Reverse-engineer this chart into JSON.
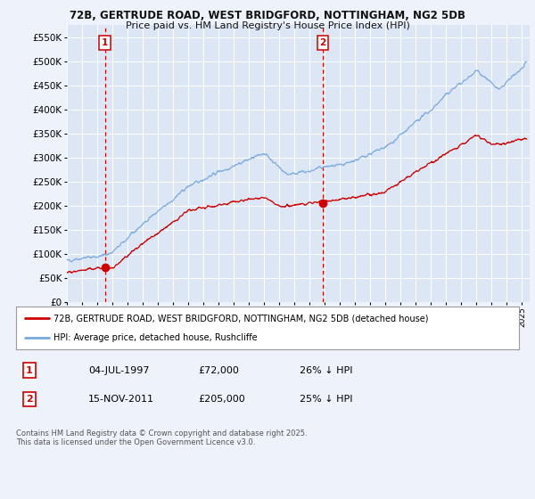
{
  "title_line1": "72B, GERTRUDE ROAD, WEST BRIDGFORD, NOTTINGHAM, NG2 5DB",
  "title_line2": "Price paid vs. HM Land Registry's House Price Index (HPI)",
  "background_color": "#eef2fa",
  "plot_background": "#dde6f5",
  "grid_color": "#ffffff",
  "ylim": [
    0,
    575000
  ],
  "yticks": [
    0,
    50000,
    100000,
    150000,
    200000,
    250000,
    300000,
    350000,
    400000,
    450000,
    500000,
    550000
  ],
  "ytick_labels": [
    "£0",
    "£50K",
    "£100K",
    "£150K",
    "£200K",
    "£250K",
    "£300K",
    "£350K",
    "£400K",
    "£450K",
    "£500K",
    "£550K"
  ],
  "xlim_start": 1995.0,
  "xlim_end": 2025.5,
  "sale1_date": 1997.5,
  "sale1_price": 72000,
  "sale1_label": "1",
  "sale2_date": 2011.88,
  "sale2_price": 205000,
  "sale2_label": "2",
  "red_line_color": "#cc0000",
  "blue_line_color": "#7aaadd",
  "marker_color": "#cc0000",
  "dashed_line_color": "#cc0000",
  "legend_label_red": "72B, GERTRUDE ROAD, WEST BRIDGFORD, NOTTINGHAM, NG2 5DB (detached house)",
  "legend_label_blue": "HPI: Average price, detached house, Rushcliffe",
  "table_row1": [
    "1",
    "04-JUL-1997",
    "£72,000",
    "26% ↓ HPI"
  ],
  "table_row2": [
    "2",
    "15-NOV-2011",
    "£205,000",
    "25% ↓ HPI"
  ],
  "footer": "Contains HM Land Registry data © Crown copyright and database right 2025.\nThis data is licensed under the Open Government Licence v3.0.",
  "xtick_years": [
    1995,
    1996,
    1997,
    1998,
    1999,
    2000,
    2001,
    2002,
    2003,
    2004,
    2005,
    2006,
    2007,
    2008,
    2009,
    2010,
    2011,
    2012,
    2013,
    2014,
    2015,
    2016,
    2017,
    2018,
    2019,
    2020,
    2021,
    2022,
    2023,
    2024,
    2025
  ]
}
